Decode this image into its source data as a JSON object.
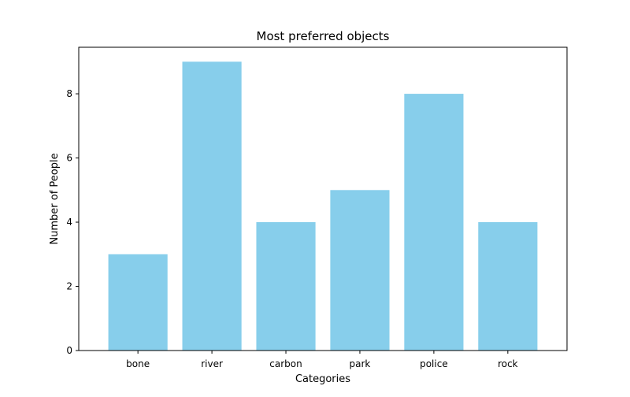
{
  "chart_data": {
    "type": "bar",
    "title": "Most preferred objects",
    "xlabel": "Categories",
    "ylabel": "Number of People",
    "categories": [
      "bone",
      "river",
      "carbon",
      "park",
      "police",
      "rock"
    ],
    "values": [
      3,
      9,
      4,
      5,
      8,
      4
    ],
    "ylim": [
      0,
      9.45
    ],
    "yticks": [
      0,
      2,
      4,
      6,
      8
    ],
    "bar_color": "#87CEEB",
    "grid": false,
    "legend": "none"
  }
}
